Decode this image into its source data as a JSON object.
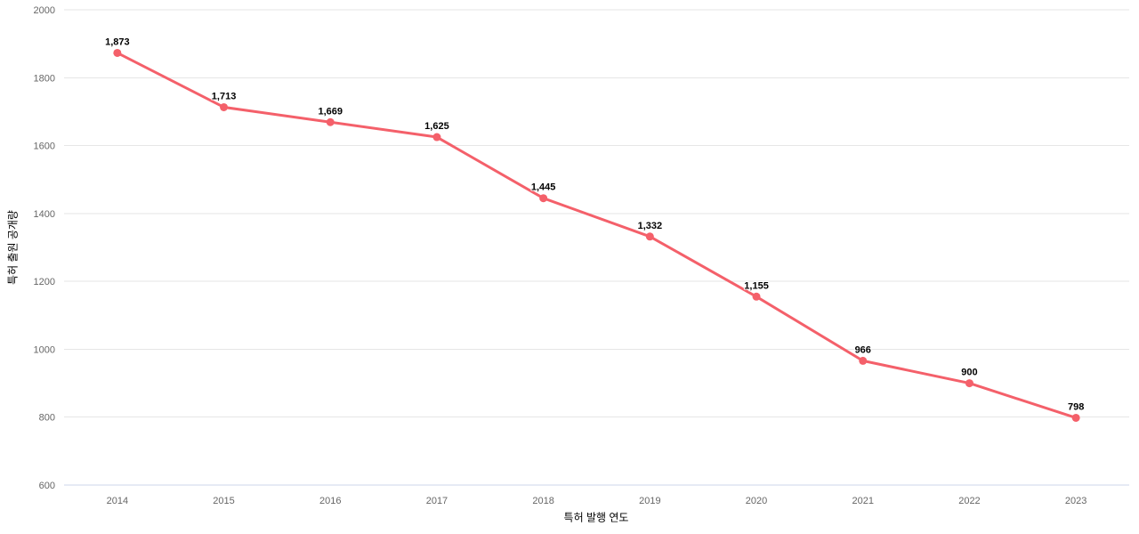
{
  "chart_data": {
    "type": "line",
    "title": "",
    "xlabel": "특허 발행 연도",
    "ylabel": "특허 출원 공개량",
    "categories": [
      "2014",
      "2015",
      "2016",
      "2017",
      "2018",
      "2019",
      "2020",
      "2021",
      "2022",
      "2023"
    ],
    "series": [
      {
        "name": "특허 출원 공개량",
        "color": "#f4606a",
        "values": [
          1873,
          1713,
          1669,
          1625,
          1445,
          1332,
          1155,
          966,
          900,
          798
        ]
      }
    ],
    "data_labels": [
      "1,873",
      "1,713",
      "1,669",
      "1,625",
      "1,445",
      "1,332",
      "1,155",
      "966",
      "900",
      "798"
    ],
    "ylim": [
      600,
      2000
    ],
    "ytick_step": 200,
    "yticks": [
      "600",
      "800",
      "1000",
      "1200",
      "1400",
      "1600",
      "1800",
      "2000"
    ],
    "grid": true,
    "legend": "none",
    "colors": {
      "background": "#ffffff",
      "gridline": "#e6e6e6",
      "axis_line": "#ccd6eb",
      "tick_label": "#666666",
      "axis_title": "#666666",
      "data_label": "#000000",
      "data_label_halo": "#ffffff"
    }
  }
}
